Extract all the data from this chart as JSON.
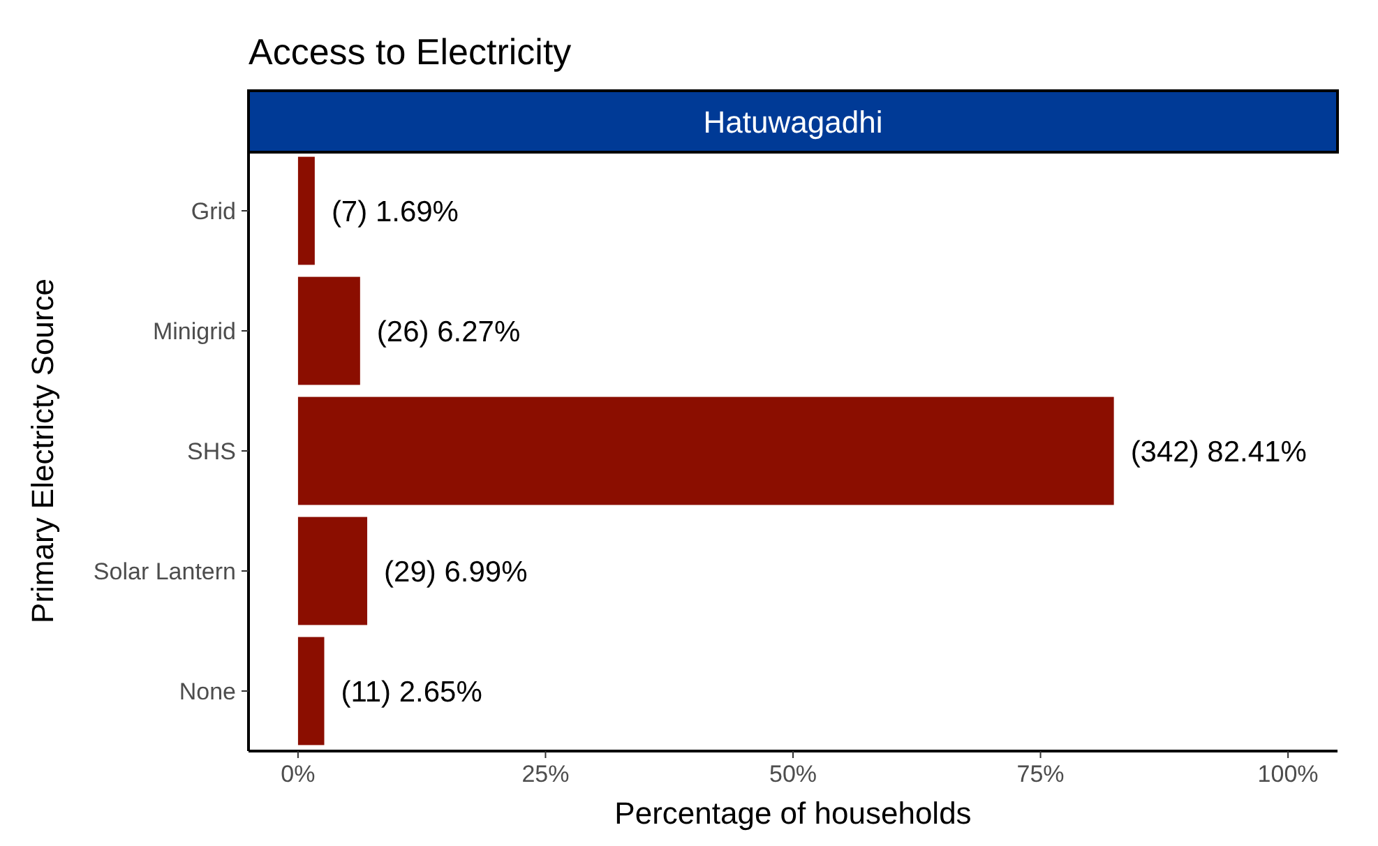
{
  "chart_data": {
    "type": "bar",
    "orientation": "horizontal",
    "title": "Access to Electricity",
    "subtitle": "Hatuwagadhi",
    "xlabel": "Percentage of households",
    "ylabel": "Primary Electricty Source",
    "categories": [
      "Grid",
      "Minigrid",
      "SHS",
      "Solar Lantern",
      "None"
    ],
    "values": [
      1.69,
      6.27,
      82.41,
      6.99,
      2.65
    ],
    "value_labels": [
      "(7) 1.69%",
      "(26) 6.27%",
      "(342) 82.41%",
      "(29) 6.99%",
      "(11) 2.65%"
    ],
    "color": "#8b0e00",
    "xlim": [
      -5,
      105
    ],
    "xticks": [
      {
        "value": 0,
        "label": "0%"
      },
      {
        "value": 25,
        "label": "25%"
      },
      {
        "value": 50,
        "label": "50%"
      },
      {
        "value": 75,
        "label": "75%"
      },
      {
        "value": 100,
        "label": "100%"
      }
    ],
    "grid": false
  }
}
